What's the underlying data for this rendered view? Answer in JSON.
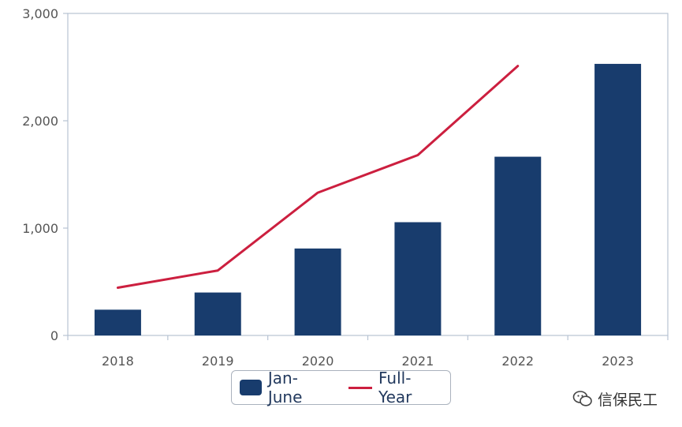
{
  "chart_data": {
    "type": "bar",
    "categories": [
      "2018",
      "2019",
      "2020",
      "2021",
      "2022",
      "2023"
    ],
    "series": [
      {
        "name": "Jan-June",
        "type": "bar",
        "values": [
          240,
          400,
          810,
          1055,
          1665,
          2530
        ]
      },
      {
        "name": "Full-Year",
        "type": "line",
        "values": [
          445,
          605,
          1330,
          1680,
          2510,
          null
        ]
      }
    ],
    "ylim": [
      0,
      3000
    ],
    "yticks": [
      0,
      1000,
      2000,
      3000
    ],
    "ytick_labels": [
      "0",
      "1,000",
      "2,000",
      "3,000"
    ],
    "grid": false,
    "legend_position": "bottom-center",
    "colors": {
      "bar": "#183c6d",
      "line": "#cc1f3f",
      "axis": "#b7c3d3"
    }
  },
  "watermark": {
    "text": "信保民工",
    "icon": "wechat-icon"
  }
}
